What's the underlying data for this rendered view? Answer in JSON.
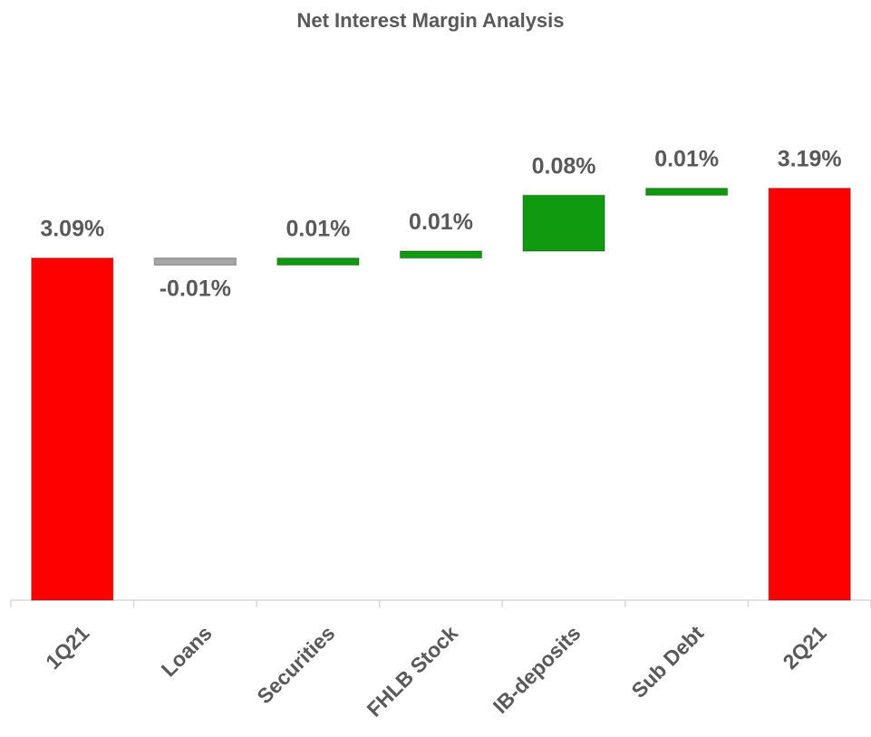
{
  "chart_data": {
    "type": "waterfall",
    "title": "Net Interest Margin Analysis",
    "categories": [
      "1Q21",
      "Loans",
      "Securities",
      "FHLB Stock",
      "IB-deposits",
      "Sub Debt",
      "2Q21"
    ],
    "values": [
      3.09,
      -0.01,
      0.01,
      0.01,
      0.08,
      0.01,
      3.19
    ],
    "value_labels": [
      "3.09%",
      "-0.01%",
      "0.01%",
      "0.01%",
      "0.08%",
      "0.01%",
      "3.19%"
    ],
    "colors": [
      "#ff0000",
      "#a6a6a6",
      "#109a10",
      "#109a10",
      "#109a10",
      "#109a10",
      "#ff0000"
    ],
    "ylim": [
      2.6,
      3.3
    ]
  }
}
